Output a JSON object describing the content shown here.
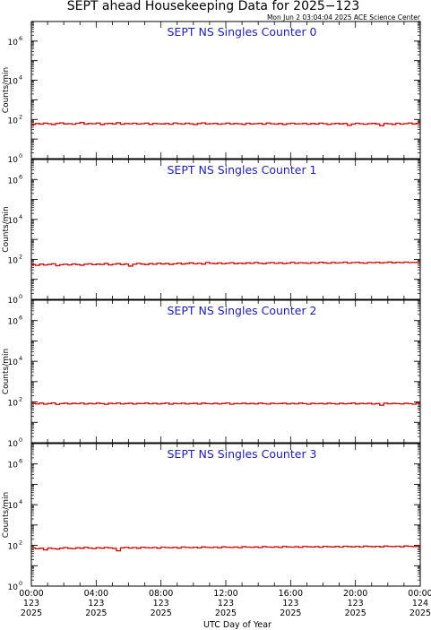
{
  "header": {
    "title": "SEPT ahead Housekeeping Data for 2025−123",
    "generated": "Mon Jun  2 03:04:04 2025 ACE Science Center"
  },
  "chart_data": {
    "type": "line",
    "yscale": "log",
    "ylabel": "Counts/min",
    "xlabel": "UTC Day of Year",
    "xlim_hours": [
      0,
      24
    ],
    "ylim": [
      1,
      10000000.0
    ],
    "yticks": [
      {
        "base": "10",
        "exp": "0",
        "value": 1
      },
      {
        "base": "10",
        "exp": "2",
        "value": 100
      },
      {
        "base": "10",
        "exp": "4",
        "value": 10000
      },
      {
        "base": "10",
        "exp": "6",
        "value": 1000000
      }
    ],
    "xticks": [
      {
        "hour": 0,
        "time": "00:00",
        "doy": "123",
        "year": "2025"
      },
      {
        "hour": 4,
        "time": "04:00",
        "doy": "123",
        "year": "2025"
      },
      {
        "hour": 8,
        "time": "08:00",
        "doy": "123",
        "year": "2025"
      },
      {
        "hour": 12,
        "time": "12:00",
        "doy": "123",
        "year": "2025"
      },
      {
        "hour": 16,
        "time": "16:00",
        "doy": "123",
        "year": "2025"
      },
      {
        "hour": 20,
        "time": "20:00",
        "doy": "123",
        "year": "2025"
      },
      {
        "hour": 24,
        "time": "00:00",
        "doy": "124",
        "year": "2025"
      }
    ],
    "line_color": "#cc0000",
    "title_color": "#1f1fa8",
    "step_hours": 0.25,
    "panels": [
      {
        "title": "SEPT NS Singles Counter 0",
        "values": [
          56,
          62,
          58,
          65,
          60,
          55,
          63,
          67,
          59,
          61,
          57,
          64,
          70,
          58,
          62,
          60,
          66,
          55,
          61,
          63,
          59,
          68,
          57,
          62,
          60,
          64,
          58,
          61,
          65,
          56,
          63,
          60,
          59,
          62,
          57,
          66,
          61,
          58,
          64,
          60,
          55,
          62,
          67,
          59,
          61,
          63,
          57,
          60,
          65,
          58,
          62,
          60,
          56,
          64,
          59,
          61,
          63,
          57,
          66,
          60,
          58,
          62,
          55,
          61,
          64,
          59,
          60,
          63,
          57,
          62,
          58,
          65,
          61,
          56,
          60,
          63,
          59,
          62,
          50,
          58,
          64,
          60,
          57,
          61,
          63,
          59,
          48,
          62,
          60,
          56,
          64,
          58,
          61,
          66,
          59,
          63
        ]
      },
      {
        "title": "SEPT NS Singles Counter 1",
        "values": [
          55,
          50,
          58,
          52,
          56,
          60,
          48,
          54,
          57,
          53,
          59,
          55,
          51,
          57,
          60,
          54,
          58,
          56,
          62,
          53,
          57,
          61,
          55,
          59,
          46,
          57,
          63,
          58,
          55,
          61,
          57,
          64,
          59,
          62,
          56,
          60,
          65,
          58,
          62,
          67,
          60,
          64,
          58,
          70,
          63,
          61,
          66,
          60,
          64,
          68,
          61,
          65,
          62,
          67,
          63,
          70,
          64,
          61,
          66,
          69,
          63,
          67,
          62,
          65,
          71,
          64,
          68,
          66,
          63,
          69,
          65,
          72,
          67,
          64,
          70,
          66,
          68,
          73,
          65,
          69,
          71,
          67,
          64,
          70,
          68,
          72,
          66,
          69,
          74,
          67,
          71,
          68,
          73,
          69,
          70,
          72
        ]
      },
      {
        "title": "SEPT NS Singles Counter 2",
        "values": [
          85,
          80,
          88,
          78,
          84,
          90,
          76,
          83,
          87,
          80,
          86,
          82,
          89,
          79,
          85,
          81,
          88,
          83,
          77,
          86,
          82,
          89,
          80,
          84,
          87,
          79,
          85,
          83,
          88,
          81,
          86,
          80,
          84,
          89,
          78,
          85,
          82,
          87,
          80,
          84,
          86,
          79,
          88,
          83,
          81,
          86,
          80,
          85,
          89,
          78,
          84,
          82,
          87,
          81,
          85,
          80,
          88,
          83,
          79,
          86,
          82,
          84,
          87,
          80,
          85,
          81,
          88,
          83,
          78,
          86,
          82,
          85,
          80,
          87,
          83,
          79,
          86,
          81,
          84,
          88,
          80,
          85,
          82,
          86,
          79,
          84,
          70,
          87,
          81,
          85,
          83,
          80,
          86,
          82,
          78,
          90
        ]
      },
      {
        "title": "SEPT NS Singles Counter 3",
        "values": [
          75,
          68,
          72,
          60,
          74,
          70,
          66,
          73,
          78,
          71,
          69,
          76,
          72,
          80,
          74,
          70,
          77,
          73,
          79,
          75,
          71,
          54,
          76,
          80,
          74,
          78,
          72,
          81,
          77,
          75,
          79,
          73,
          82,
          78,
          76,
          80,
          74,
          83,
          79,
          77,
          81,
          75,
          84,
          80,
          78,
          82,
          76,
          85,
          81,
          79,
          83,
          77,
          86,
          82,
          80,
          84,
          78,
          87,
          83,
          81,
          85,
          79,
          88,
          84,
          82,
          86,
          80,
          89,
          85,
          83,
          87,
          81,
          90,
          86,
          84,
          88,
          82,
          91,
          87,
          85,
          89,
          83,
          92,
          88,
          86,
          90,
          84,
          93,
          89,
          87,
          91,
          85,
          94,
          90,
          88,
          92
        ]
      }
    ]
  }
}
